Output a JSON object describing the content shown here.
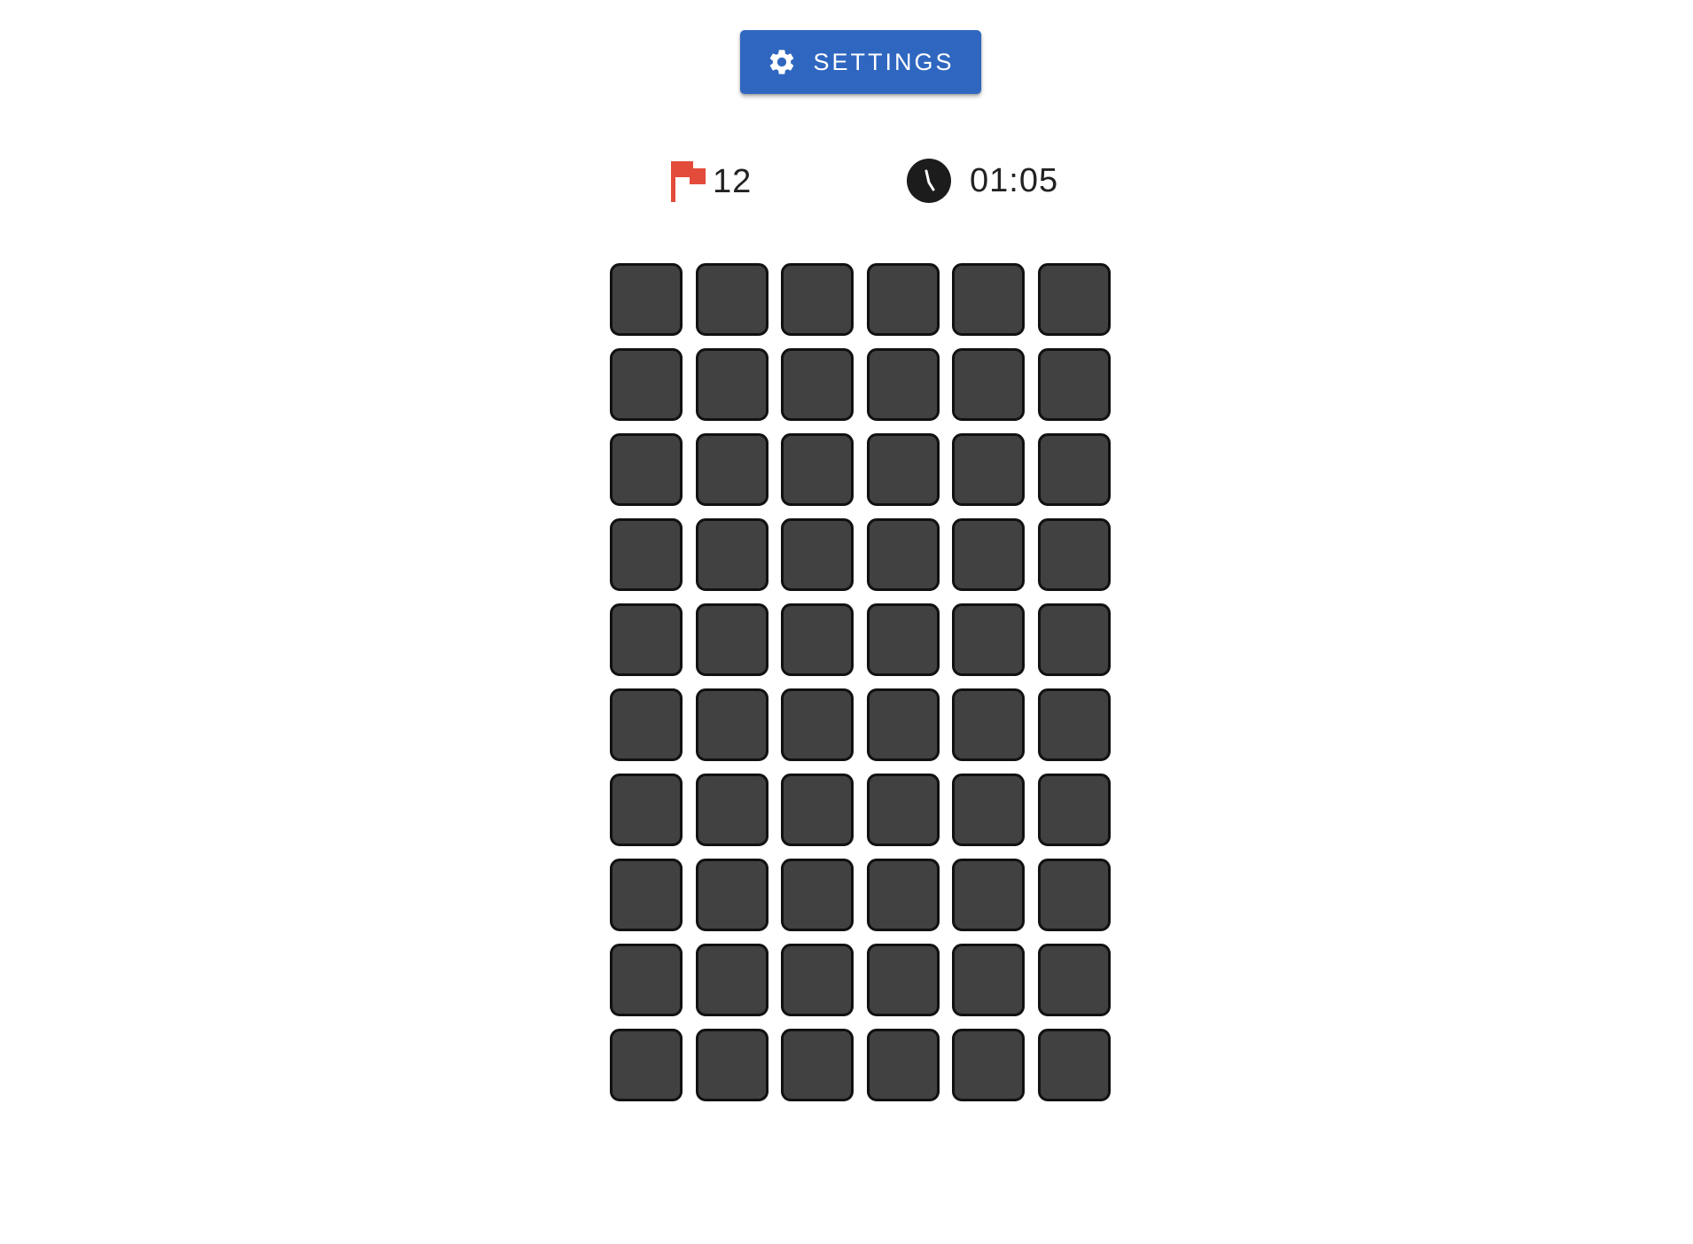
{
  "toolbar": {
    "settings_label": "Settings",
    "settings_icon": "gear-icon",
    "accent_color": "#2f67c0"
  },
  "status": {
    "flags_remaining": "12",
    "flag_icon": "flag-icon",
    "flag_color": "#e34b3a",
    "timer": "01:05",
    "timer_icon": "clock-icon"
  },
  "board": {
    "rows": 10,
    "columns": 6,
    "cell_state": "covered",
    "cell_color": "#414141"
  }
}
